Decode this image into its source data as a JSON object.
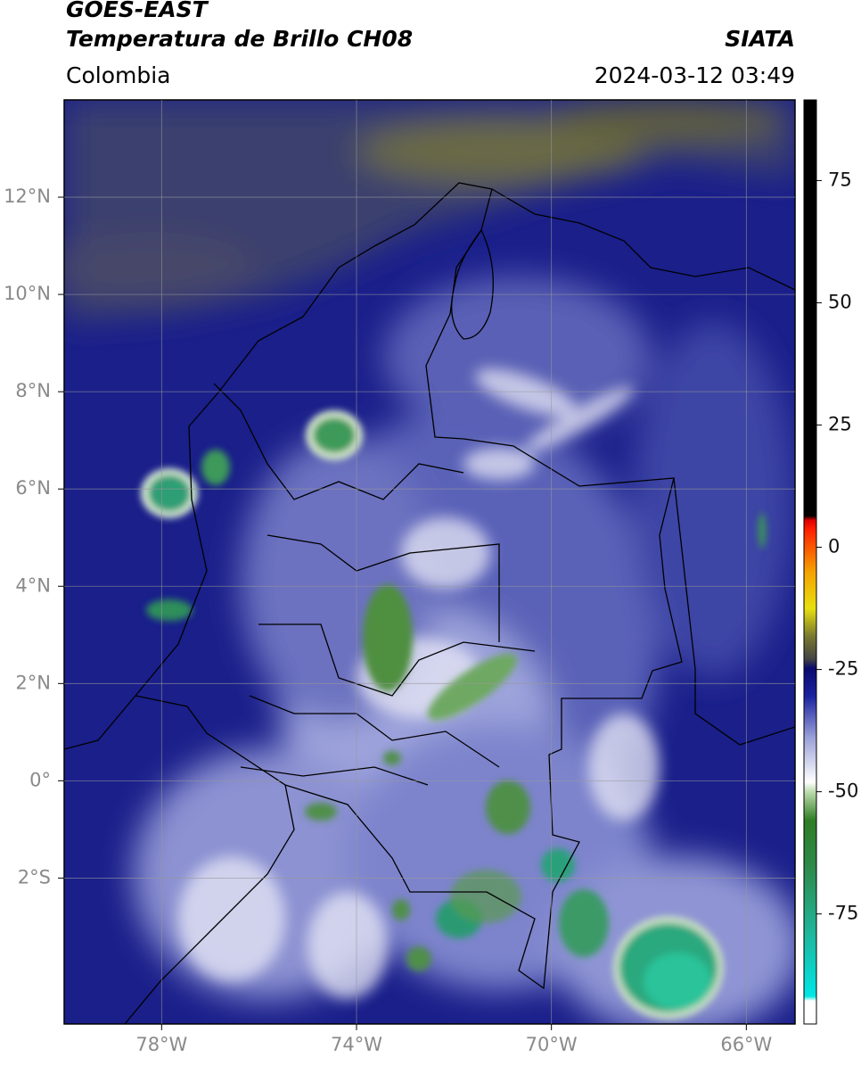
{
  "header": {
    "satellite": "GOES-EAST",
    "product": "Temperatura de Brillo CH08",
    "agency": "SIATA",
    "region": "Colombia",
    "datetime": "2024-03-12 03:49"
  },
  "map": {
    "xlim": [
      -80,
      -65
    ],
    "ylim": [
      -5,
      14
    ],
    "grid": true,
    "xticks": [
      {
        "value": -78,
        "label": "78°W"
      },
      {
        "value": -74,
        "label": "74°W"
      },
      {
        "value": -70,
        "label": "70°W"
      },
      {
        "value": -66,
        "label": "66°W"
      }
    ],
    "yticks": [
      {
        "value": -2,
        "label": "2°S"
      },
      {
        "value": 0,
        "label": "0°"
      },
      {
        "value": 2,
        "label": "2°N"
      },
      {
        "value": 4,
        "label": "4°N"
      },
      {
        "value": 6,
        "label": "6°N"
      },
      {
        "value": 8,
        "label": "8°N"
      },
      {
        "value": 10,
        "label": "10°N"
      },
      {
        "value": 12,
        "label": "12°N"
      }
    ]
  },
  "colorbar": {
    "lim": [
      -97.5,
      91.5
    ],
    "ticks": [
      75,
      50,
      25,
      0,
      -25,
      -50,
      -75
    ]
  }
}
